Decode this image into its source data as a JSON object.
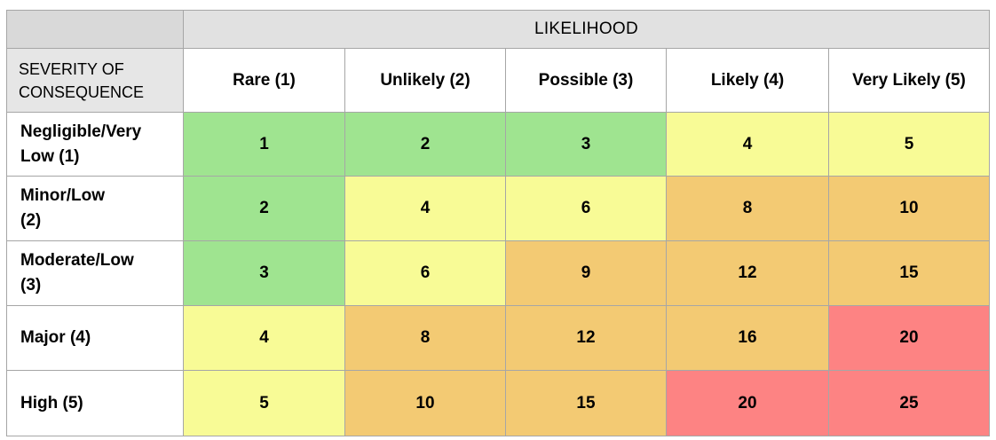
{
  "header": {
    "likelihood_label": "LIKELIHOOD",
    "severity_label_line1": "SEVERITY OF",
    "severity_label_line2": "CONSEQUENCE"
  },
  "columns": [
    "Rare (1)",
    "Unlikely (2)",
    "Possible (3)",
    "Likely (4)",
    "Very Likely (5)"
  ],
  "rows": [
    {
      "label_line1": "Negligible/Very",
      "label_line2": "Low (1)",
      "cells": [
        {
          "value": "1",
          "level": "green"
        },
        {
          "value": "2",
          "level": "green"
        },
        {
          "value": "3",
          "level": "green"
        },
        {
          "value": "4",
          "level": "yellow"
        },
        {
          "value": "5",
          "level": "yellow"
        }
      ]
    },
    {
      "label_line1": "Minor/Low",
      "label_line2": "(2)",
      "cells": [
        {
          "value": "2",
          "level": "green"
        },
        {
          "value": "4",
          "level": "yellow"
        },
        {
          "value": "6",
          "level": "yellow"
        },
        {
          "value": "8",
          "level": "orange"
        },
        {
          "value": "10",
          "level": "orange"
        }
      ]
    },
    {
      "label_line1": "Moderate/Low",
      "label_line2": "(3)",
      "cells": [
        {
          "value": "3",
          "level": "green"
        },
        {
          "value": "6",
          "level": "yellow"
        },
        {
          "value": "9",
          "level": "orange"
        },
        {
          "value": "12",
          "level": "orange"
        },
        {
          "value": "15",
          "level": "orange"
        }
      ]
    },
    {
      "label_line1": "Major (4)",
      "label_line2": "",
      "cells": [
        {
          "value": "4",
          "level": "yellow"
        },
        {
          "value": "8",
          "level": "orange"
        },
        {
          "value": "12",
          "level": "orange"
        },
        {
          "value": "16",
          "level": "orange"
        },
        {
          "value": "20",
          "level": "red"
        }
      ]
    },
    {
      "label_line1": "High (5)",
      "label_line2": "",
      "cells": [
        {
          "value": "5",
          "level": "yellow"
        },
        {
          "value": "10",
          "level": "orange"
        },
        {
          "value": "15",
          "level": "orange"
        },
        {
          "value": "20",
          "level": "red"
        },
        {
          "value": "25",
          "level": "red"
        }
      ]
    }
  ],
  "colors": {
    "green": "#9fe490",
    "yellow": "#f8fb96",
    "orange": "#f3ca73",
    "red": "#fd8383"
  }
}
